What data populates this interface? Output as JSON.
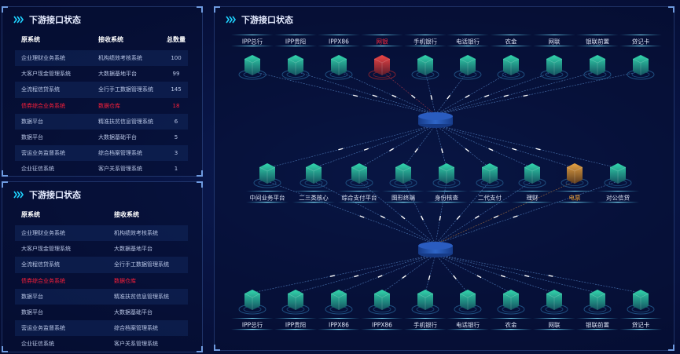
{
  "panel1": {
    "title": "下游接口状态",
    "headers": [
      "原系统",
      "接收系统",
      "总数量"
    ],
    "rows": [
      {
        "src": "企业理财业务系统",
        "dst": "机构绩效考核系统",
        "count": "100",
        "alert": false
      },
      {
        "src": "大客户现金管理系统",
        "dst": "大数据基地平台",
        "count": "99",
        "alert": false
      },
      {
        "src": "全流程信贷系统",
        "dst": "全行手工数据管理系统",
        "count": "145",
        "alert": false
      },
      {
        "src": "债券综合业务系统",
        "dst": "数据仓库",
        "count": "18",
        "alert": true
      },
      {
        "src": "数据平台",
        "dst": "精准扶贫信息管理系统",
        "count": "6",
        "alert": false
      },
      {
        "src": "数据平台",
        "dst": "大数据基础平台",
        "count": "5",
        "alert": false
      },
      {
        "src": "营运业务监督系统",
        "dst": "综合档案管理系统",
        "count": "3",
        "alert": false
      },
      {
        "src": "企业征信系统",
        "dst": "客户关系管理系统",
        "count": "1",
        "alert": false
      }
    ]
  },
  "panel2": {
    "title": "下游接口状态",
    "headers": [
      "原系统",
      "接收系统"
    ],
    "rows": [
      {
        "src": "企业理财业务系统",
        "dst": "机构绩效考核系统",
        "alert": false
      },
      {
        "src": "大客户现金管理系统",
        "dst": "大数据基地平台",
        "alert": false
      },
      {
        "src": "全流程信贷系统",
        "dst": "全行手工数据管理系统",
        "alert": false
      },
      {
        "src": "债券综合业务系统",
        "dst": "数据仓库",
        "alert": true
      },
      {
        "src": "数据平台",
        "dst": "精准扶贫信息管理系统",
        "alert": false
      },
      {
        "src": "数据平台",
        "dst": "大数据基础平台",
        "alert": false
      },
      {
        "src": "营运业务监督系统",
        "dst": "综合档案管理系统",
        "alert": false
      },
      {
        "src": "企业征信系统",
        "dst": "客户关系管理系统",
        "alert": false
      }
    ]
  },
  "topology": {
    "title": "下游接口状态",
    "top": [
      {
        "label": "IPP总行",
        "status": "ok"
      },
      {
        "label": "IPP贵阳",
        "status": "ok"
      },
      {
        "label": "IPPX86",
        "status": "ok"
      },
      {
        "label": "网银",
        "status": "error"
      },
      {
        "label": "手机银行",
        "status": "ok"
      },
      {
        "label": "电话银行",
        "status": "ok"
      },
      {
        "label": "农金",
        "status": "ok"
      },
      {
        "label": "网联",
        "status": "ok"
      },
      {
        "label": "银联前置",
        "status": "ok"
      },
      {
        "label": "贷记卡",
        "status": "ok"
      }
    ],
    "middle": [
      {
        "label": "中间业务平台",
        "status": "ok"
      },
      {
        "label": "二三类核心",
        "status": "ok"
      },
      {
        "label": "综合支付平台",
        "status": "ok"
      },
      {
        "label": "图形终端",
        "status": "ok"
      },
      {
        "label": "身份核查",
        "status": "ok"
      },
      {
        "label": "二代支付",
        "status": "ok"
      },
      {
        "label": "理财",
        "status": "ok"
      },
      {
        "label": "电票",
        "status": "warning"
      },
      {
        "label": "对公信贷",
        "status": "ok"
      }
    ],
    "bottom": [
      {
        "label": "IPP总行",
        "status": "ok"
      },
      {
        "label": "IPP贵阳",
        "status": "ok"
      },
      {
        "label": "IPPX86",
        "status": "ok"
      },
      {
        "label": "IPPX86",
        "status": "ok"
      },
      {
        "label": "手机银行",
        "status": "ok"
      },
      {
        "label": "电话银行",
        "status": "ok"
      },
      {
        "label": "农金",
        "status": "ok"
      },
      {
        "label": "网联",
        "status": "ok"
      },
      {
        "label": "银联前置",
        "status": "ok"
      },
      {
        "label": "贷记卡",
        "status": "ok"
      }
    ]
  },
  "colors": {
    "ok": "#27c3a0",
    "error": "#e0393c",
    "warning": "#d9963a",
    "accent": "#1fd3ff",
    "alert_text": "#ff1f3a"
  }
}
